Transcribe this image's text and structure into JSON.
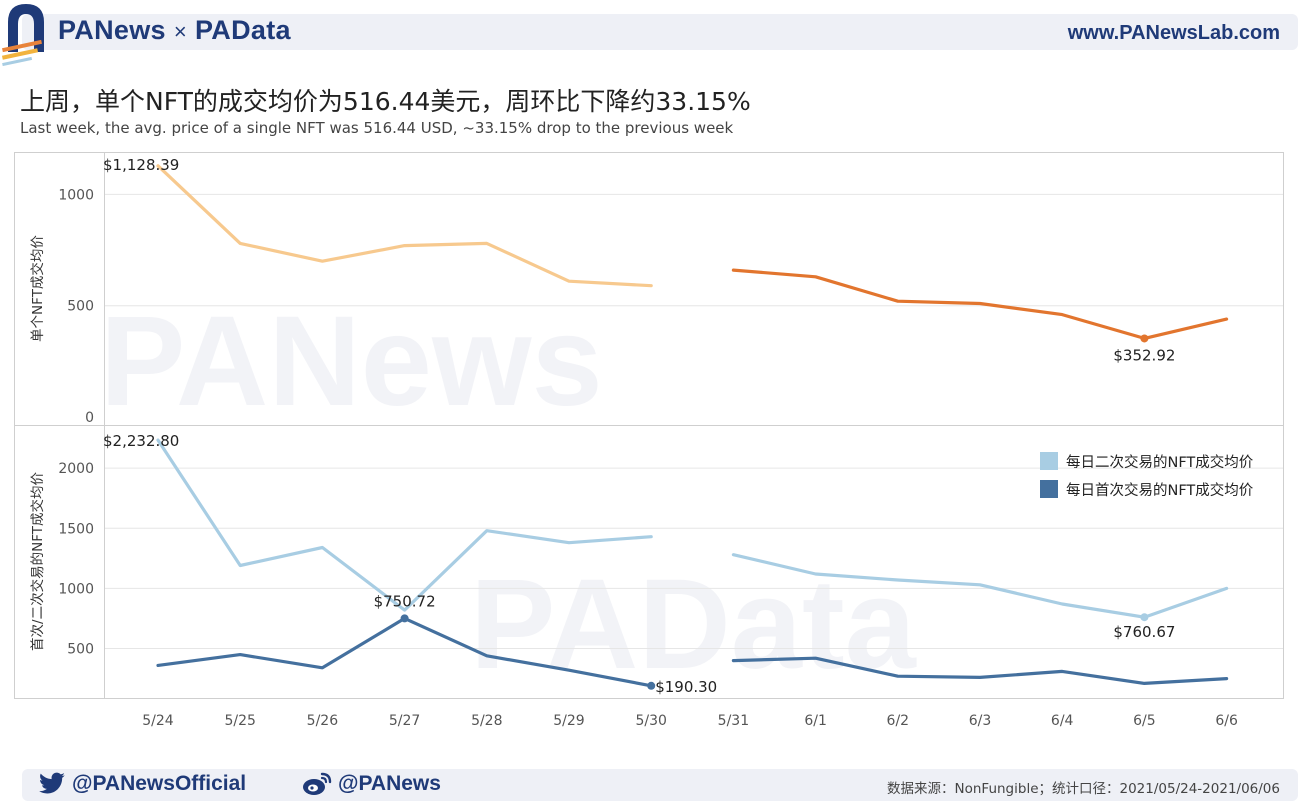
{
  "header": {
    "brand_left": "PANews",
    "brand_times": "×",
    "brand_right": "PAData",
    "site_url": "www.PANewsLab.com"
  },
  "title": "上周，单个NFT的成交均价为516.44美元，周环比下降约33.15%",
  "subtitle": "Last week, the avg. price of a single NFT was 516.44 USD, ~33.15% drop to the previous week",
  "watermarks": [
    "PANews",
    "PAData"
  ],
  "footer": {
    "twitter_handle": "@PANewsOfficial",
    "weibo_handle": "@PANews",
    "source": "数据来源：NonFungible；统计口径：2021/05/24-2021/06/06"
  },
  "colors": {
    "brand_blue": "#1f3a78",
    "brand_orange": "#e8833a",
    "week1_single": "#f7c98e",
    "week2_single": "#e2752e",
    "secondary": "#a8cde3",
    "primary": "#44709e"
  },
  "chart_data": [
    {
      "type": "line",
      "ylabel": "单个NFT成交均价",
      "ylim": [
        0,
        1200
      ],
      "yticks": [
        0,
        500,
        1000
      ],
      "categories": [
        "5/24",
        "5/25",
        "5/26",
        "5/27",
        "5/28",
        "5/29",
        "5/30",
        "5/31",
        "6/1",
        "6/2",
        "6/3",
        "6/4",
        "6/5",
        "6/6"
      ],
      "series": [
        {
          "color": "#f7c98e",
          "x": [
            "5/24",
            "5/25",
            "5/26",
            "5/27",
            "5/28",
            "5/29",
            "5/30"
          ],
          "values": [
            1128.39,
            780,
            700,
            770,
            780,
            610,
            590
          ]
        },
        {
          "color": "#e2752e",
          "x": [
            "5/31",
            "6/1",
            "6/2",
            "6/3",
            "6/4",
            "6/5",
            "6/6"
          ],
          "values": [
            660,
            630,
            520,
            510,
            460,
            352.92,
            440
          ]
        }
      ],
      "annotations": [
        {
          "x": "5/24",
          "y": 1128.39,
          "text": "$1,128.39"
        },
        {
          "x": "6/5",
          "y": 352.92,
          "text": "$352.92",
          "marker": true
        }
      ]
    },
    {
      "type": "line",
      "ylabel": "首次/二次交易的NFT成交均价",
      "ylim": [
        0,
        2400
      ],
      "yticks": [
        500,
        1000,
        1500,
        2000
      ],
      "legend_position": "top-right",
      "legend": [
        "每日二次交易的NFT成交均价",
        "每日首次交易的NFT成交均价"
      ],
      "categories": [
        "5/24",
        "5/25",
        "5/26",
        "5/27",
        "5/28",
        "5/29",
        "5/30",
        "5/31",
        "6/1",
        "6/2",
        "6/3",
        "6/4",
        "6/5",
        "6/6"
      ],
      "series": [
        {
          "name": "每日二次交易的NFT成交均价",
          "color": "#a8cde3",
          "segments": [
            {
              "x": [
                "5/24",
                "5/25",
                "5/26",
                "5/27",
                "5/28",
                "5/29",
                "5/30"
              ],
              "values": [
                2232.8,
                1190,
                1340,
                820,
                1480,
                1380,
                1430
              ]
            },
            {
              "x": [
                "5/31",
                "6/1",
                "6/2",
                "6/3",
                "6/4",
                "6/5",
                "6/6"
              ],
              "values": [
                1280,
                1120,
                1070,
                1030,
                870,
                760.67,
                1000
              ]
            }
          ]
        },
        {
          "name": "每日首次交易的NFT成交均价",
          "color": "#44709e",
          "segments": [
            {
              "x": [
                "5/24",
                "5/25",
                "5/26",
                "5/27",
                "5/28",
                "5/29",
                "5/30"
              ],
              "values": [
                360,
                450,
                340,
                750.72,
                440,
                320,
                190.3
              ]
            },
            {
              "x": [
                "5/31",
                "6/1",
                "6/2",
                "6/3",
                "6/4",
                "6/5",
                "6/6"
              ],
              "values": [
                400,
                420,
                270,
                260,
                310,
                210,
                250
              ]
            }
          ]
        }
      ],
      "annotations": [
        {
          "x": "5/24",
          "y": 2232.8,
          "text": "$2,232.80"
        },
        {
          "x": "5/27",
          "y": 750.72,
          "text": "$750.72",
          "marker": true
        },
        {
          "x": "5/30",
          "y": 190.3,
          "text": "$190.30",
          "marker": true
        },
        {
          "x": "6/5",
          "y": 760.67,
          "text": "$760.67",
          "marker": true
        }
      ]
    }
  ]
}
